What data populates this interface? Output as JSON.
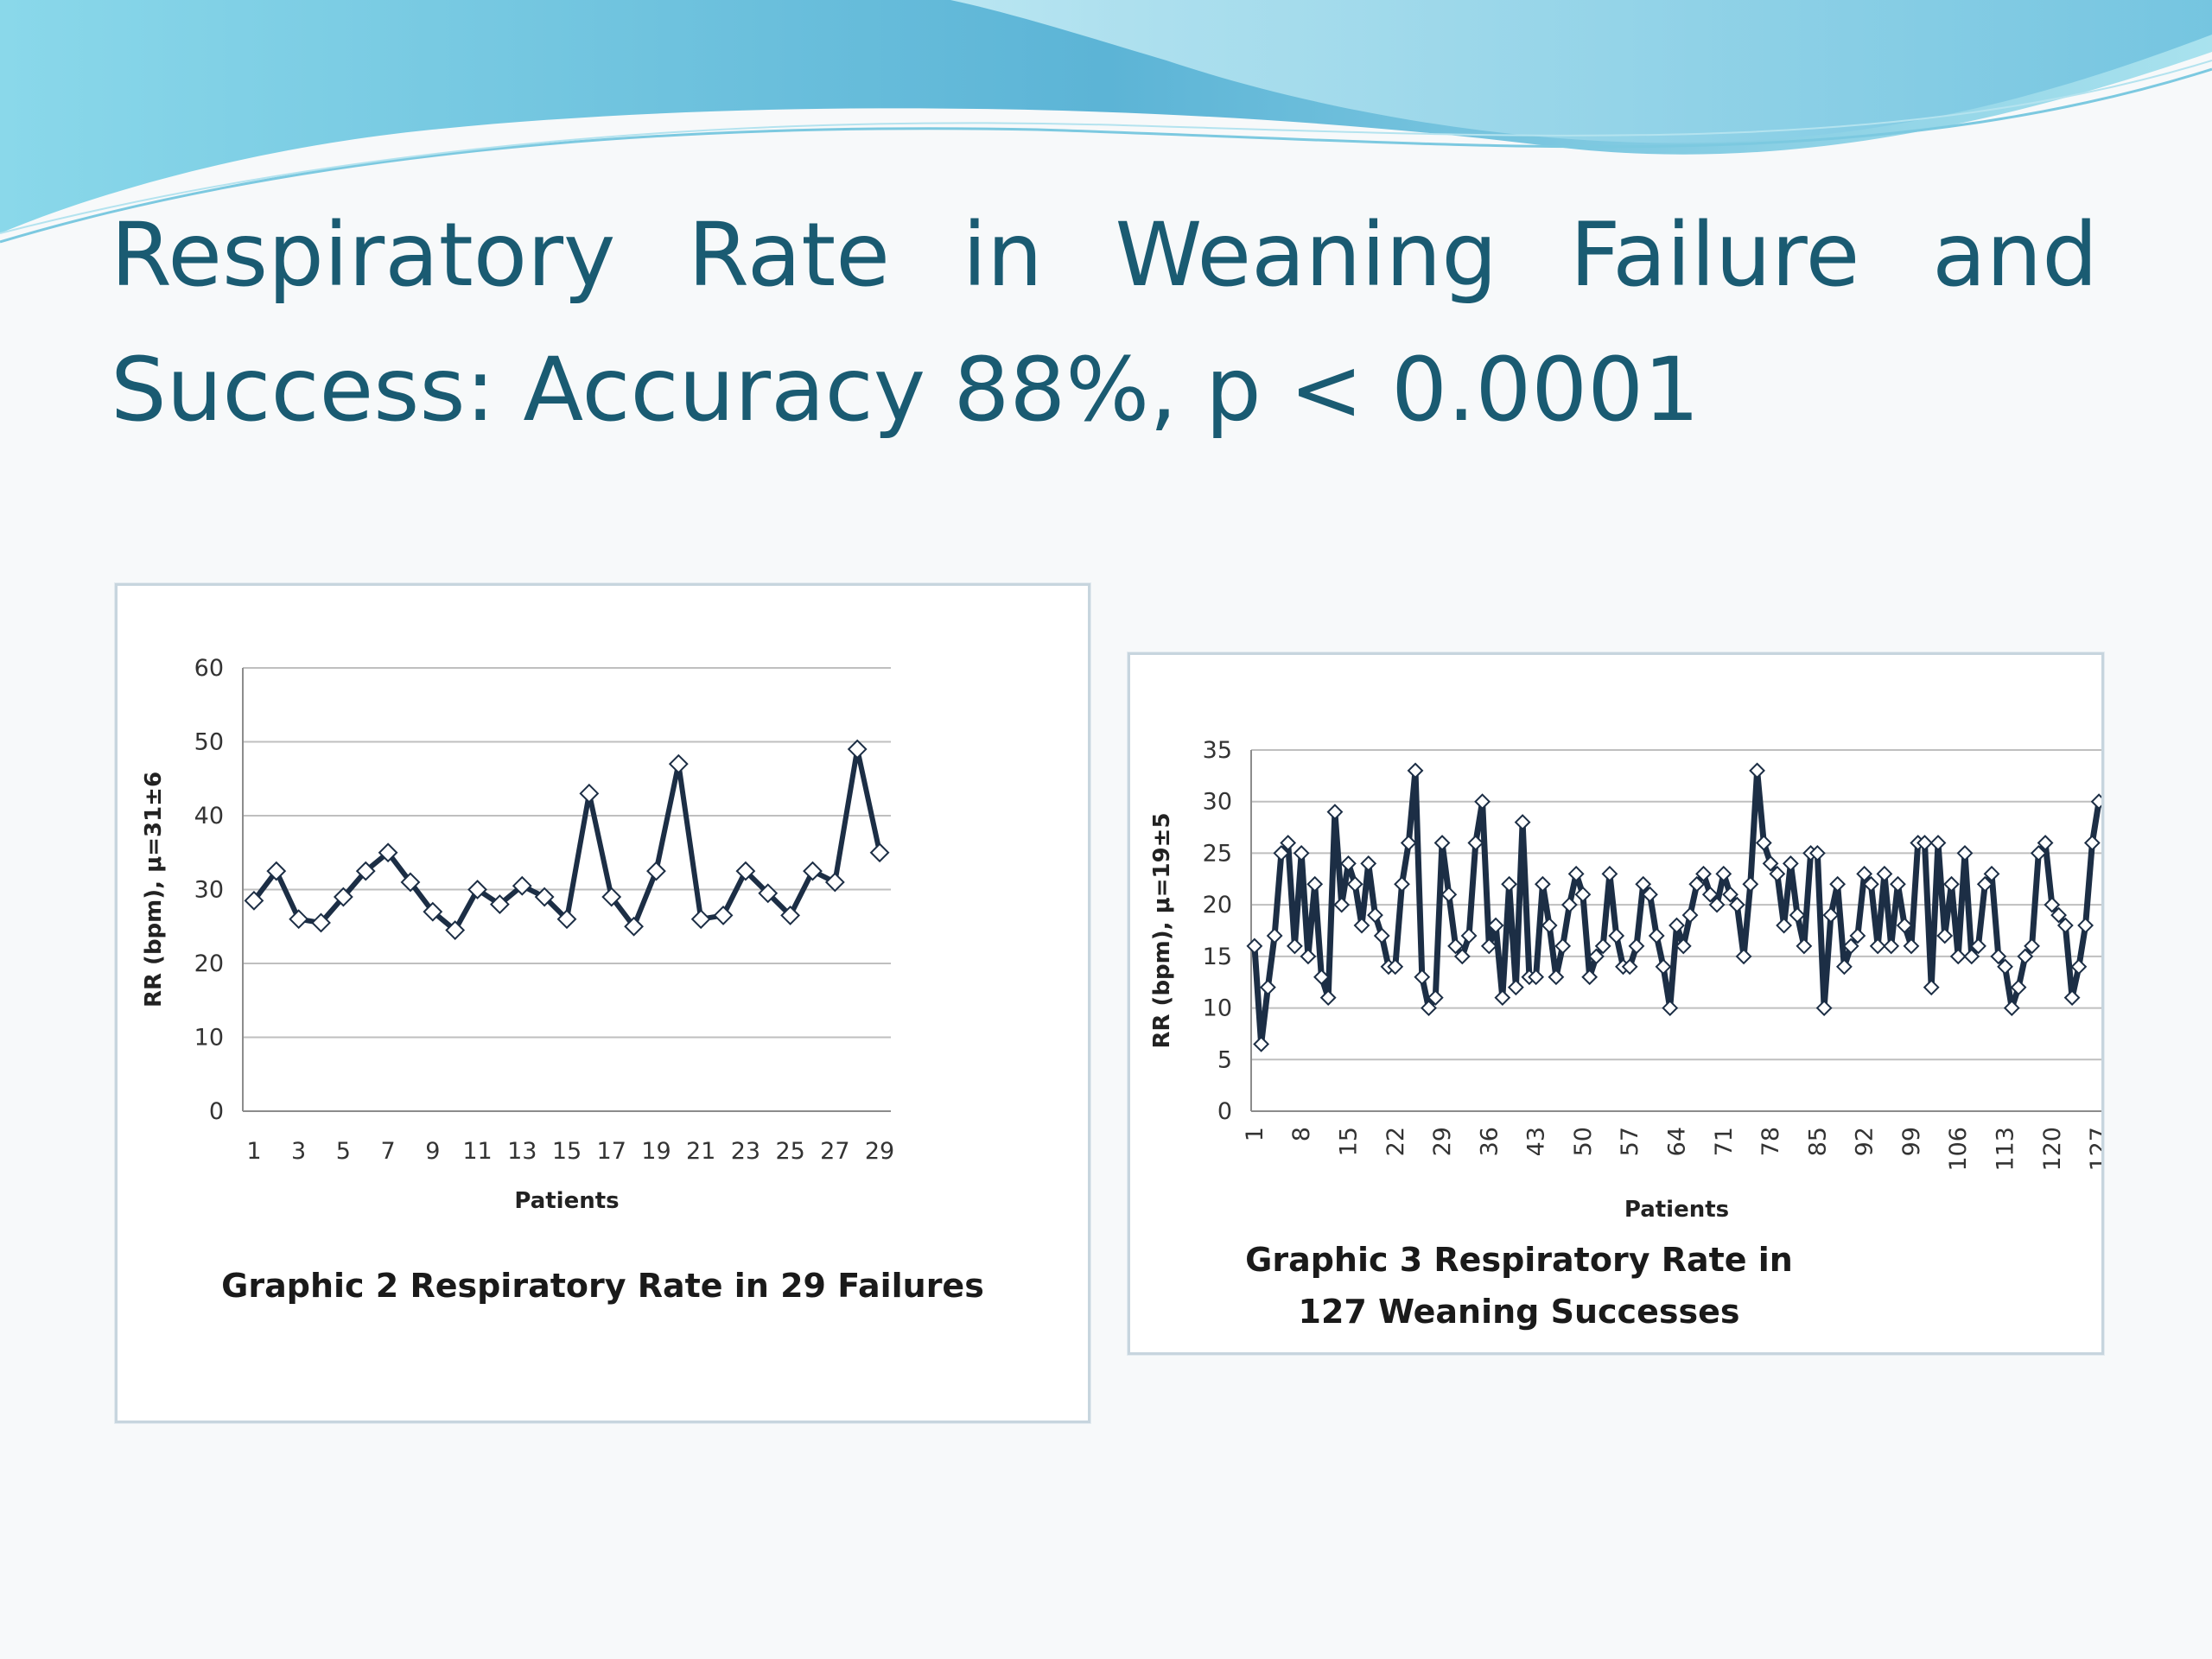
{
  "slide": {
    "title": "Respiratory Rate in Weaning Failure and Success: Accuracy 88%, p < 0.0001"
  },
  "colors": {
    "title": "#1a5b72",
    "series_line": "#1c2e45",
    "marker_fill": "#ffffff",
    "gridline": "#bfbfbf",
    "wave_light": "#9fdceb",
    "wave_dark": "#5fb7d8"
  },
  "chart_data": [
    {
      "type": "line",
      "caption": "Graphic 2 Respiratory Rate in 29 Failures",
      "xlabel": "Patients",
      "ylabel": "RR (bpm), μ=31±6",
      "ylim": [
        0,
        60
      ],
      "yticks": [
        0,
        10,
        20,
        30,
        40,
        50,
        60
      ],
      "x": [
        1,
        2,
        3,
        4,
        5,
        6,
        7,
        8,
        9,
        10,
        11,
        12,
        13,
        14,
        15,
        16,
        17,
        18,
        19,
        20,
        21,
        22,
        23,
        24,
        25,
        26,
        27,
        28,
        29
      ],
      "xtick_labels": [
        "1",
        "3",
        "5",
        "7",
        "9",
        "11",
        "13",
        "15",
        "17",
        "19",
        "21",
        "23",
        "25",
        "27",
        "29"
      ],
      "values": [
        28.5,
        32.5,
        26,
        25.5,
        29,
        32.5,
        35,
        31,
        27,
        24.5,
        30,
        28,
        30.5,
        29,
        26,
        43,
        29,
        25,
        32.5,
        47,
        26,
        26.5,
        32.5,
        29.5,
        26.5,
        32.5,
        31,
        49,
        35
      ],
      "grid": true,
      "legend": "none"
    },
    {
      "type": "line",
      "caption": "Graphic 3 Respiratory Rate in 127 Weaning Successes",
      "xlabel": "Patients",
      "ylabel": "RR (bpm), μ=19±5",
      "ylim": [
        0,
        35
      ],
      "yticks": [
        0,
        5,
        10,
        15,
        20,
        25,
        30,
        35
      ],
      "xtick_labels": [
        "1",
        "8",
        "15",
        "22",
        "29",
        "36",
        "43",
        "50",
        "57",
        "64",
        "71",
        "78",
        "85",
        "92",
        "99",
        "106",
        "113",
        "120",
        "127"
      ],
      "values": [
        16,
        6.5,
        12,
        17,
        25,
        26,
        16,
        25,
        15,
        22,
        13,
        11,
        29,
        20,
        24,
        22,
        18,
        24,
        19,
        17,
        14,
        14,
        22,
        26,
        33,
        13,
        10,
        11,
        26,
        21,
        16,
        15,
        17,
        26,
        30,
        16,
        18,
        11,
        22,
        12,
        28,
        13,
        13,
        22,
        18,
        13,
        16,
        20,
        23,
        21,
        13,
        15,
        16,
        23,
        17,
        14,
        14,
        16,
        22,
        21,
        17,
        14,
        10,
        18,
        16,
        19,
        22,
        23,
        21,
        20,
        23,
        21,
        20,
        15,
        22,
        33,
        26,
        24,
        23,
        18,
        24,
        19,
        16,
        25,
        25,
        10,
        19,
        22,
        14,
        16,
        17,
        23,
        22,
        16,
        23,
        16,
        22,
        18,
        16,
        26,
        26,
        12,
        26,
        17,
        22,
        15,
        25,
        15,
        16,
        22,
        23,
        15,
        14,
        10,
        12,
        15,
        16,
        25,
        26,
        20,
        19,
        18,
        11,
        14,
        18,
        26,
        30
      ],
      "grid": true,
      "legend": "none"
    }
  ]
}
